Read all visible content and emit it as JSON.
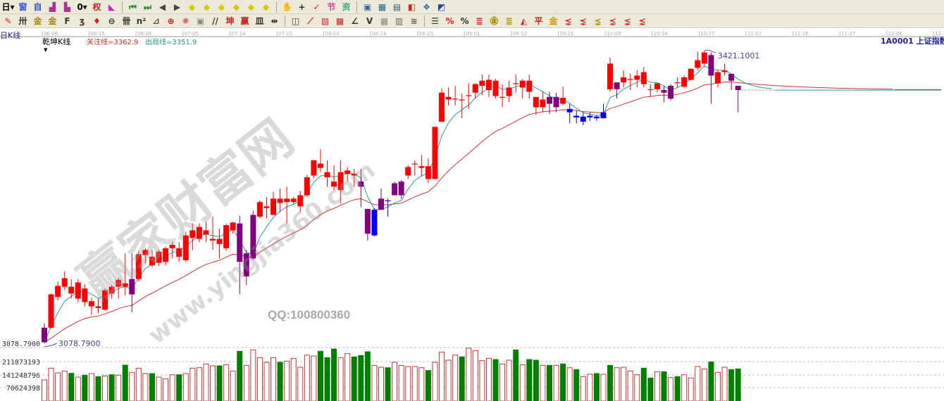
{
  "toolbar": {
    "row1": [
      {
        "name": "period-dropdown-icon",
        "glyph": "日▾",
        "color": "#000"
      },
      {
        "name": "window-icon",
        "glyph": "窗",
        "color": "#3355cc"
      },
      {
        "name": "auto-icon",
        "glyph": "自",
        "color": "#3355cc"
      },
      {
        "name": "stairs-up-icon",
        "glyph": "▟",
        "color": "#aa3399"
      },
      {
        "name": "stairs-down-icon",
        "glyph": "▙",
        "color": "#aa3399"
      },
      {
        "name": "zero-dropdown-icon",
        "glyph": "0▾",
        "color": "#000"
      },
      {
        "name": "rights-icon",
        "glyph": "权",
        "color": "#cc2222"
      },
      {
        "name": "gradient-triangle-icon",
        "glyph": "◣",
        "color": "#cc22cc"
      },
      {
        "sep": true
      },
      {
        "name": "first-icon",
        "glyph": "⏮",
        "color": "#338833"
      },
      {
        "name": "last-icon",
        "glyph": "⏭",
        "color": "#338833"
      },
      {
        "name": "prev-icon",
        "glyph": "◀",
        "color": "#444"
      },
      {
        "name": "next-icon",
        "glyph": "▶",
        "color": "#444"
      },
      {
        "name": "zoom-left-icon",
        "glyph": "◆",
        "color": "#d8c800"
      },
      {
        "name": "zoom-right-icon",
        "glyph": "◆",
        "color": "#d8c800"
      },
      {
        "name": "zoom-expand-icon",
        "glyph": "◆",
        "color": "#d8c800"
      },
      {
        "name": "zoom-shrink-icon",
        "glyph": "◆",
        "color": "#d8c800"
      },
      {
        "name": "zoom-in-icon",
        "glyph": "◆",
        "color": "#d8c800"
      },
      {
        "name": "zoom-out-icon",
        "glyph": "◆",
        "color": "#d8c800"
      },
      {
        "sep": true
      },
      {
        "name": "hand-icon",
        "glyph": "✋",
        "color": "#555"
      },
      {
        "name": "crosshair-icon",
        "glyph": "+",
        "color": "#333"
      },
      {
        "name": "draw-icon",
        "glyph": "✓",
        "color": "#cc2222"
      },
      {
        "name": "festival-icon",
        "glyph": "节",
        "color": "#cc44aa"
      },
      {
        "name": "info-icon",
        "glyph": "资",
        "color": "#44aa88"
      },
      {
        "sep": true
      },
      {
        "name": "calendar-icon",
        "glyph": "▣",
        "color": "#336699"
      },
      {
        "name": "calculator-icon",
        "glyph": "▦",
        "color": "#226688"
      },
      {
        "name": "notes-icon",
        "glyph": "▤",
        "color": "#335577"
      },
      {
        "name": "save-icon",
        "glyph": "◧",
        "color": "#cc2222"
      },
      {
        "name": "network-icon",
        "glyph": "❖",
        "color": "#2277aa"
      },
      {
        "name": "connect-icon",
        "glyph": "◩",
        "color": "#2244aa"
      }
    ],
    "row2": [
      {
        "name": "pen-icon",
        "glyph": "✎",
        "color": "#cc2222"
      },
      {
        "name": "grid-icon",
        "glyph": "卅",
        "color": "#333"
      },
      {
        "name": "gold-line-icon",
        "glyph": "金",
        "color": "#aa8800"
      },
      {
        "name": "gold-line2-icon",
        "glyph": "金",
        "color": "#aa8800"
      },
      {
        "name": "fib-icon",
        "glyph": "F",
        "color": "#333"
      },
      {
        "name": "wave-icon",
        "glyph": "ʒ",
        "color": "#333"
      },
      {
        "name": "marker-icon",
        "glyph": "♦",
        "color": "#cc2222"
      },
      {
        "name": "circle-icon",
        "glyph": "⊖",
        "color": "#333"
      },
      {
        "name": "lines-icon",
        "glyph": "卌",
        "color": "#333"
      },
      {
        "name": "n2-icon",
        "glyph": "n²",
        "color": "#333"
      },
      {
        "name": "angle-icon",
        "glyph": "⊿",
        "color": "#555"
      },
      {
        "name": "target-icon",
        "glyph": "⊕",
        "color": "#cc2222"
      },
      {
        "name": "star-icon",
        "glyph": "✺",
        "color": "#cc6666"
      },
      {
        "name": "box-icon",
        "glyph": "▣",
        "color": "#888"
      },
      {
        "name": "parallel-icon",
        "glyph": "//",
        "color": "#333"
      },
      {
        "name": "kun-icon",
        "glyph": "坤",
        "color": "#cc2222"
      },
      {
        "name": "qian-icon",
        "glyph": "赢",
        "color": "#cc2222"
      },
      {
        "name": "bars-icon",
        "glyph": "皿",
        "color": "#333"
      },
      {
        "name": "split-icon",
        "glyph": "⇹",
        "color": "#333"
      },
      {
        "sep": true
      },
      {
        "name": "rect-icon",
        "glyph": "◫",
        "color": "#444"
      },
      {
        "name": "fan-icon",
        "glyph": "⟋",
        "color": "#cc2222"
      },
      {
        "name": "hatch-icon",
        "glyph": "▨",
        "color": "#cc2222"
      },
      {
        "name": "hatch2-icon",
        "glyph": "▩",
        "color": "#cc2222"
      },
      {
        "name": "angle-line-icon",
        "glyph": "∠",
        "color": "#333"
      },
      {
        "name": "v-icon",
        "glyph": "V",
        "color": "#333"
      },
      {
        "name": "table-icon",
        "glyph": "▦",
        "color": "#888"
      },
      {
        "name": "table2-icon",
        "glyph": "▥",
        "color": "#666"
      },
      {
        "name": "multi-line-icon",
        "glyph": "≋",
        "color": "#555"
      },
      {
        "sep": true
      },
      {
        "name": "list-icon",
        "glyph": "☰",
        "color": "#333"
      },
      {
        "name": "percent-k-icon",
        "glyph": "%",
        "color": "#cc2222"
      },
      {
        "name": "percent-icon",
        "glyph": "%",
        "color": "#333"
      },
      {
        "name": "percent-lines-icon",
        "glyph": "≣",
        "color": "#cc2222"
      },
      {
        "name": "gold-coin-icon",
        "glyph": "㊎",
        "color": "#aa8800"
      },
      {
        "name": "gold-lines-icon",
        "glyph": "≣",
        "color": "#aa8800"
      },
      {
        "name": "cost-icon",
        "glyph": "◭",
        "color": "#cc2222"
      },
      {
        "name": "ping-icon",
        "glyph": "平",
        "color": "#cc2222"
      },
      {
        "name": "jin-icon",
        "glyph": "金",
        "color": "#cc9900"
      },
      {
        "name": "fan1-icon",
        "glyph": "⋨",
        "color": "#cc2222"
      },
      {
        "name": "fan2-icon",
        "glyph": "⋨",
        "color": "#cc2222"
      },
      {
        "name": "fan3-icon",
        "glyph": "⋨",
        "color": "#aa8800"
      },
      {
        "name": "fan4-icon",
        "glyph": "⋨",
        "color": "#cc2222"
      },
      {
        "name": "fan5-icon",
        "glyph": "⋨",
        "color": "#cc2222"
      },
      {
        "name": "fan6-icon",
        "glyph": "⋨",
        "color": "#cc2222"
      }
    ]
  },
  "header": {
    "period": "日K线",
    "indicator": "乾坤K线",
    "focus_line_label": "关注线=3362.9",
    "exit_line_label": "出局线=3351.9",
    "symbol": "1A0001  上证指数"
  },
  "colors": {
    "up": "#ff0000",
    "purple": "#800080",
    "blue": "#0000ff",
    "focus_line": "#cc3333",
    "exit_line": "#2a9a9a",
    "vol_up": "#cc3333",
    "vol_down": "#008000"
  },
  "watermark": {
    "main": "赢家财富网",
    "url": "www.yingjia360.com",
    "qq": "QQ:100800360"
  },
  "chart_data": {
    "type": "candlestick",
    "x_ticks": [
      "06-06",
      "06-15",
      "06-26",
      "07-05",
      "07-14",
      "07-25",
      "08-03",
      "08-14",
      "08-23",
      "09-01",
      "09-12",
      "09-21",
      "10-09",
      "10-18",
      "10-27",
      "11-07",
      "11-16",
      "11-27",
      "12-06",
      "12-15"
    ],
    "price_axis_label": "3078.7900",
    "low_annotation": "3078.7900",
    "high_annotation": "3421.1001",
    "candle_fields": [
      "open",
      "high",
      "low",
      "close",
      "color"
    ],
    "candles": [
      [
        3097,
        3102,
        3078.79,
        3080,
        "p"
      ],
      [
        3097,
        3137,
        3096,
        3136,
        "r"
      ],
      [
        3133,
        3151,
        3129,
        3146,
        "r"
      ],
      [
        3145,
        3163,
        3141,
        3155,
        "r"
      ],
      [
        3137,
        3154,
        3131,
        3145,
        "r"
      ],
      [
        3131,
        3154,
        3127,
        3150,
        "r"
      ],
      [
        3127,
        3148,
        3122,
        3143,
        "r"
      ],
      [
        3122,
        3132,
        3112,
        3128,
        "r"
      ],
      [
        3120,
        3131,
        3114,
        3122,
        "r"
      ],
      [
        3118,
        3143,
        3117,
        3141,
        "r"
      ],
      [
        3137,
        3147,
        3131,
        3145,
        "r"
      ],
      [
        3145,
        3155,
        3131,
        3153,
        "r"
      ],
      [
        3145,
        3184,
        3135,
        3149,
        "r"
      ],
      [
        3154,
        3184,
        3115,
        3136,
        "p"
      ],
      [
        3154,
        3187,
        3151,
        3183,
        "r"
      ],
      [
        3182,
        3190,
        3172,
        3188,
        "r"
      ],
      [
        3170,
        3188,
        3168,
        3180,
        "r"
      ],
      [
        3173,
        3188,
        3169,
        3186,
        "r"
      ],
      [
        3174,
        3192,
        3170,
        3190,
        "r"
      ],
      [
        3190,
        3197,
        3178,
        3194,
        "r"
      ],
      [
        3180,
        3197,
        3174,
        3190,
        "r"
      ],
      [
        3176,
        3209,
        3174,
        3205,
        "r"
      ],
      [
        3202,
        3219,
        3188,
        3211,
        "r"
      ],
      [
        3201,
        3219,
        3197,
        3215,
        "r"
      ],
      [
        3206,
        3221,
        3197,
        3211,
        "r"
      ],
      [
        3199,
        3227,
        3188,
        3201,
        "r"
      ],
      [
        3195,
        3213,
        3178,
        3201,
        "r"
      ],
      [
        3190,
        3219,
        3187,
        3217,
        "r"
      ],
      [
        3211,
        3221,
        3207,
        3220,
        "r"
      ],
      [
        3219,
        3228,
        3136,
        3174,
        "p"
      ],
      [
        3184,
        3188,
        3147,
        3157,
        "p"
      ],
      [
        3229,
        3234,
        3176,
        3178,
        "p"
      ],
      [
        3227,
        3246,
        3225,
        3244,
        "r"
      ],
      [
        3237,
        3250,
        3225,
        3239,
        "r"
      ],
      [
        3229,
        3256,
        3229,
        3248,
        "r"
      ],
      [
        3243,
        3260,
        3232,
        3248,
        "r"
      ],
      [
        3244,
        3262,
        3219,
        3248,
        "r"
      ],
      [
        3244,
        3250,
        3242,
        3248,
        "r"
      ],
      [
        3239,
        3257,
        3232,
        3252,
        "r"
      ],
      [
        3252,
        3276,
        3250,
        3273,
        "r"
      ],
      [
        3275,
        3293,
        3272,
        3293,
        "r"
      ],
      [
        3284,
        3306,
        3279,
        3289,
        "r"
      ],
      [
        3273,
        3293,
        3262,
        3279,
        "r"
      ],
      [
        3262,
        3287,
        3258,
        3268,
        "r"
      ],
      [
        3258,
        3293,
        3242,
        3279,
        "r"
      ],
      [
        3277,
        3285,
        3268,
        3281,
        "r"
      ],
      [
        3275,
        3283,
        3262,
        3277,
        "r"
      ],
      [
        3268,
        3283,
        3238,
        3262,
        "p"
      ],
      [
        3236,
        3236,
        3199,
        3207,
        "p"
      ],
      [
        3235,
        3237,
        3204,
        3205,
        "b"
      ],
      [
        3248,
        3260,
        3235,
        3235,
        "p"
      ],
      [
        3246,
        3248,
        3227,
        3245,
        "b"
      ],
      [
        3266,
        3268,
        3252,
        3252,
        "p"
      ],
      [
        3268,
        3270,
        3248,
        3252,
        "p"
      ],
      [
        3275,
        3287,
        3271,
        3285,
        "r"
      ],
      [
        3288,
        3293,
        3275,
        3289,
        "r"
      ],
      [
        3284,
        3299,
        3275,
        3286,
        "r"
      ],
      [
        3271,
        3295,
        3266,
        3286,
        "r"
      ],
      [
        3271,
        3332,
        3271,
        3332,
        "r"
      ],
      [
        3338,
        3377,
        3338,
        3372,
        "r"
      ],
      [
        3364,
        3378,
        3357,
        3367,
        "r"
      ],
      [
        3364,
        3380,
        3357,
        3365,
        "r"
      ],
      [
        3363,
        3371,
        3342,
        3364,
        "r"
      ],
      [
        3368,
        3383,
        3353,
        3369,
        "r"
      ],
      [
        3372,
        3383,
        3365,
        3382,
        "r"
      ],
      [
        3380,
        3393,
        3369,
        3386,
        "r"
      ],
      [
        3375,
        3393,
        3367,
        3387,
        "r"
      ],
      [
        3368,
        3388,
        3365,
        3386,
        "r"
      ],
      [
        3367,
        3382,
        3355,
        3367,
        "r"
      ],
      [
        3368,
        3386,
        3361,
        3378,
        "r"
      ],
      [
        3382,
        3393,
        3372,
        3383,
        "r"
      ],
      [
        3378,
        3388,
        3365,
        3386,
        "r"
      ],
      [
        3373,
        3393,
        3365,
        3386,
        "r"
      ],
      [
        3355,
        3367,
        3346,
        3367,
        "r"
      ],
      [
        3355,
        3373,
        3349,
        3364,
        "r"
      ],
      [
        3367,
        3373,
        3347,
        3359,
        "p"
      ],
      [
        3367,
        3372,
        3349,
        3355,
        "p"
      ],
      [
        3359,
        3379,
        3357,
        3366,
        "r"
      ],
      [
        3353,
        3359,
        3336,
        3349,
        "b"
      ],
      [
        3345,
        3351,
        3336,
        3343,
        "b"
      ],
      [
        3344,
        3349,
        3334,
        3338,
        "b"
      ],
      [
        3345,
        3349,
        3339,
        3343,
        "b"
      ],
      [
        3344,
        3346,
        3339,
        3342,
        "b"
      ],
      [
        3342,
        3359,
        3342,
        3349,
        "b"
      ],
      [
        3376,
        3413,
        3373,
        3406,
        "r"
      ],
      [
        3384,
        3384,
        3365,
        3376,
        "p"
      ],
      [
        3384,
        3398,
        3378,
        3390,
        "r"
      ],
      [
        3387,
        3394,
        3375,
        3388,
        "r"
      ],
      [
        3387,
        3398,
        3378,
        3392,
        "r"
      ],
      [
        3382,
        3402,
        3378,
        3396,
        "r"
      ],
      [
        3375,
        3382,
        3367,
        3376,
        "r"
      ],
      [
        3376,
        3383,
        3372,
        3383,
        "r"
      ],
      [
        3375,
        3380,
        3361,
        3372,
        "p"
      ],
      [
        3380,
        3382,
        3363,
        3365,
        "p"
      ],
      [
        3383,
        3390,
        3378,
        3384,
        "r"
      ],
      [
        3379,
        3392,
        3378,
        3390,
        "r"
      ],
      [
        3387,
        3400,
        3386,
        3400,
        "r"
      ],
      [
        3401,
        3420,
        3398,
        3410,
        "r"
      ],
      [
        3406,
        3421.1001,
        3402,
        3419,
        "r"
      ],
      [
        3416,
        3419,
        3359,
        3392,
        "p"
      ],
      [
        3383,
        3398,
        3378,
        3396,
        "r"
      ],
      [
        3396,
        3406,
        3392,
        3398,
        "r"
      ],
      [
        3394,
        3394,
        3375,
        3386,
        "p"
      ],
      [
        3380,
        3380,
        3349,
        3375,
        "p"
      ]
    ],
    "lines": [
      {
        "name": "关注线",
        "color": "#cc3333"
      },
      {
        "name": "出局线",
        "color": "#2a9a9a"
      }
    ],
    "volume": {
      "axis_ticks": [
        "211873193",
        "141248796",
        "70624398"
      ],
      "values": [
        114500000,
        178100000,
        152700000,
        162800000,
        150200000,
        129800000,
        140000000,
        148900000,
        132300000,
        136100000,
        142500000,
        140000000,
        194700000,
        155200000,
        178100000,
        148900000,
        148900000,
        129800000,
        120900000,
        142500000,
        142500000,
        148900000,
        178100000,
        180700000,
        201000000,
        190900000,
        190900000,
        197200000,
        162800000,
        269800000,
        193400000,
        277400000,
        235400000,
        210000000,
        235400000,
        210000000,
        216300000,
        231600000,
        183200000,
        249400000,
        244300000,
        269800000,
        235400000,
        282500000,
        235400000,
        257000000,
        239200000,
        246800000,
        267200000,
        193400000,
        183200000,
        180700000,
        210000000,
        193400000,
        187100000,
        187100000,
        180700000,
        165400000,
        210000000,
        264700000,
        221400000,
        249400000,
        239200000,
        286300000,
        273600000,
        218900000,
        231600000,
        225200000,
        201000000,
        221400000,
        277400000,
        197200000,
        225200000,
        221400000,
        193400000,
        193400000,
        193400000,
        201000000,
        180700000,
        170500000,
        132300000,
        145100000,
        148900000,
        145100000,
        193400000,
        180700000,
        183200000,
        162800000,
        142500000,
        178100000,
        124700000,
        159000000,
        159000000,
        127200000,
        132300000,
        142500000,
        124700000,
        187100000,
        174300000,
        212500000,
        155200000,
        183200000,
        170500000,
        174300000
      ],
      "down": [
        5,
        7,
        9,
        11,
        13,
        17,
        21,
        27,
        30,
        36,
        42,
        43,
        44,
        47,
        48,
        49,
        52,
        58,
        63,
        68,
        71,
        73,
        74,
        76,
        78,
        80,
        83,
        85,
        90,
        91,
        93,
        95,
        100,
        103,
        104
      ]
    }
  }
}
